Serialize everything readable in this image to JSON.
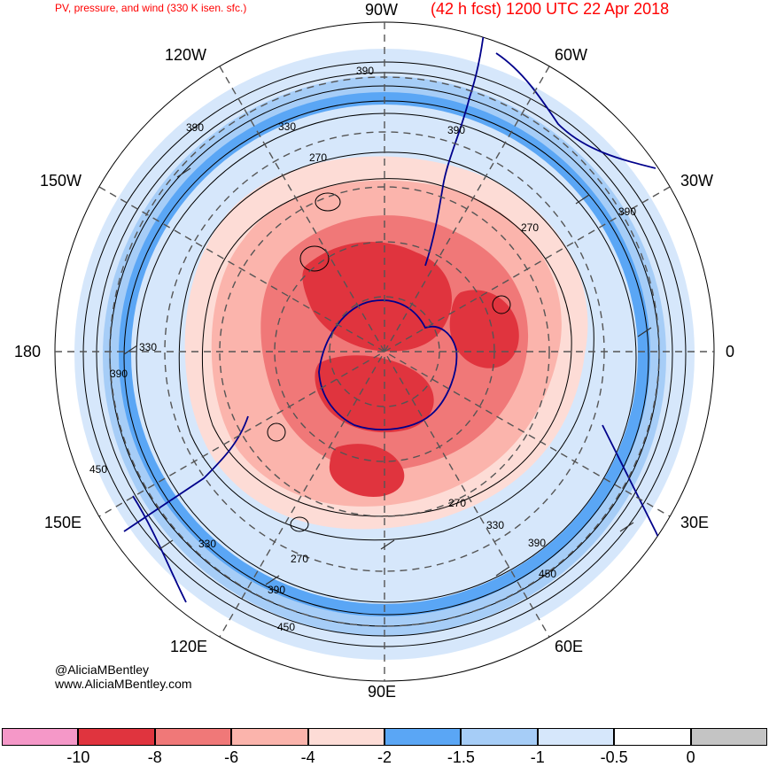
{
  "title": {
    "left": "PV, pressure, and wind (330 K isen. sfc.)",
    "right": "(42 h fcst) 1200 UTC 22 Apr 2018"
  },
  "credits": {
    "handle": "@AliciaMBentley",
    "website": "www.AliciaMBentley.com"
  },
  "longitude_labels": {
    "w90": "90W",
    "w120": "120W",
    "w60": "60W",
    "w150": "150W",
    "w30": "30W",
    "lon180": "180",
    "lon0": "0",
    "e150": "150E",
    "e30": "30E",
    "e120": "120E",
    "e60": "60E",
    "e90": "90E"
  },
  "contour_labels": [
    "390",
    "330",
    "390",
    "270",
    "390",
    "270",
    "330",
    "390",
    "450",
    "270",
    "330",
    "390",
    "450",
    "330",
    "270",
    "390",
    "450"
  ],
  "colorbar": {
    "colors": [
      "#f598c8",
      "#e0343e",
      "#f07878",
      "#fbb4ac",
      "#fddcd6",
      "#5aa6f5",
      "#a6cdf7",
      "#d6e7fb",
      "#ffffff",
      "#c4c4c4"
    ],
    "labels": [
      "-10",
      "-8",
      "-6",
      "-4",
      "-2",
      "-1.5",
      "-1",
      "-0.5",
      "0"
    ]
  },
  "map_colors": {
    "negative_pv_core": "#e0343e",
    "negative_pv_mid": "#f07878",
    "negative_pv_light": "#fbb4ac",
    "negative_pv_pale": "#fddcd6",
    "ring_blue": "#5aa6f5",
    "ring_light_blue": "#a6cdf7",
    "ring_pale_blue": "#d6e7fb",
    "coastline": "#00008b"
  }
}
